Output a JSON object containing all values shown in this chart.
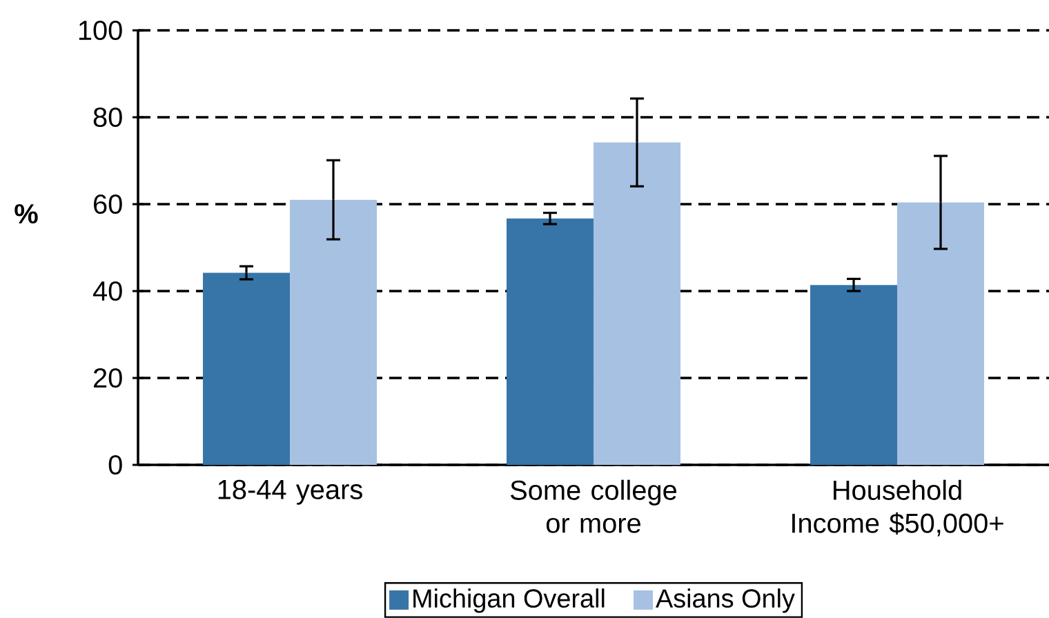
{
  "chart_data": {
    "type": "bar",
    "ylabel": "%",
    "categories": [
      "18-44 years",
      "Some college or more",
      "Household Income $50,000+"
    ],
    "series": [
      {
        "name": "Michigan Overall",
        "color": "#3775a8",
        "values": [
          44.2,
          56.7,
          41.4
        ],
        "errors": [
          1.5,
          1.3,
          1.4
        ]
      },
      {
        "name": "Asians Only",
        "color": "#a7c1e2",
        "values": [
          61.0,
          74.2,
          60.4
        ],
        "errors": [
          9.1,
          10.1,
          10.7
        ]
      }
    ],
    "ylim": [
      0,
      100
    ],
    "yticks": [
      0,
      20,
      40,
      60,
      80,
      100
    ],
    "grid": "y",
    "legend": "bottom"
  }
}
